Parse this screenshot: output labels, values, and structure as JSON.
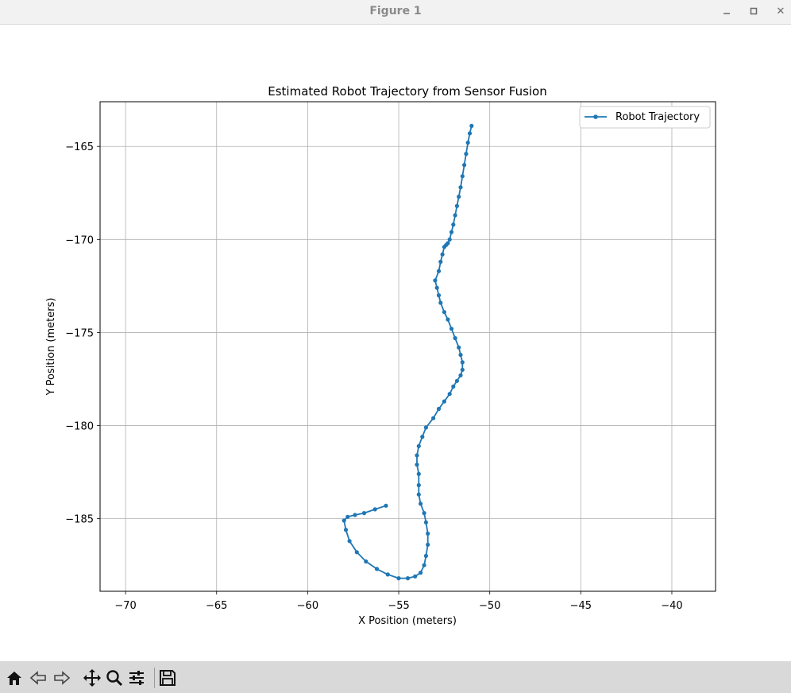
{
  "window": {
    "title": "Figure 1",
    "controls": [
      "minimize-icon",
      "maximize-icon",
      "close-icon"
    ],
    "close_glyph": "✕"
  },
  "toolbar": {
    "buttons": [
      {
        "name": "home-icon",
        "interactable": true
      },
      {
        "name": "back-arrow-icon",
        "interactable": true
      },
      {
        "name": "forward-arrow-icon",
        "interactable": true
      },
      {
        "name": "pan-icon",
        "interactable": true
      },
      {
        "name": "zoom-icon",
        "interactable": true
      },
      {
        "name": "configure-subplots-icon",
        "interactable": true
      },
      {
        "name": "save-icon",
        "interactable": true
      }
    ]
  },
  "chart_data": {
    "type": "line",
    "title": "Estimated Robot Trajectory from Sensor Fusion",
    "xlabel": "X Position (meters)",
    "ylabel": "Y Position (meters)",
    "xlim": [
      -71.4,
      -37.6
    ],
    "ylim": [
      -188.9,
      -162.6
    ],
    "xticks": [
      -70,
      -65,
      -60,
      -55,
      -50,
      -45,
      -40
    ],
    "yticks": [
      -165,
      -170,
      -175,
      -180,
      -185
    ],
    "xtick_labels": [
      "−70",
      "−65",
      "−60",
      "−55",
      "−50",
      "−45",
      "−40"
    ],
    "ytick_labels": [
      "−165",
      "−170",
      "−175",
      "−180",
      "−185"
    ],
    "grid": true,
    "legend_position": "upper-right",
    "series_color": "#1f77b4",
    "series": [
      {
        "name": "Robot Trajectory",
        "marker": "circle",
        "x": [
          -51.0,
          -51.1,
          -51.2,
          -51.3,
          -51.4,
          -51.5,
          -51.6,
          -51.7,
          -51.8,
          -51.9,
          -52.0,
          -52.1,
          -52.2,
          -52.3,
          -52.4,
          -52.5,
          -52.6,
          -52.7,
          -52.8,
          -53.0,
          -52.9,
          -52.8,
          -52.7,
          -52.5,
          -52.3,
          -52.1,
          -51.9,
          -51.7,
          -51.6,
          -51.5,
          -51.5,
          -51.6,
          -51.8,
          -52.0,
          -52.2,
          -52.5,
          -52.8,
          -53.1,
          -53.5,
          -53.7,
          -53.9,
          -54.0,
          -54.0,
          -53.9,
          -53.9,
          -53.9,
          -53.8,
          -53.6,
          -53.5,
          -53.4,
          -53.4,
          -53.5,
          -53.6,
          -53.8,
          -54.1,
          -54.5,
          -55.0,
          -55.6,
          -56.2,
          -56.8,
          -57.3,
          -57.7,
          -57.9,
          -58.0,
          -57.8,
          -57.4,
          -56.9,
          -56.3,
          -55.7
        ],
        "y": [
          -163.9,
          -164.3,
          -164.8,
          -165.4,
          -166.0,
          -166.6,
          -167.2,
          -167.7,
          -168.2,
          -168.7,
          -169.2,
          -169.6,
          -170.0,
          -170.2,
          -170.3,
          -170.4,
          -170.8,
          -171.2,
          -171.7,
          -172.2,
          -172.6,
          -173.0,
          -173.4,
          -173.9,
          -174.3,
          -174.8,
          -175.3,
          -175.8,
          -176.2,
          -176.6,
          -177.0,
          -177.3,
          -177.6,
          -177.9,
          -178.3,
          -178.7,
          -179.1,
          -179.6,
          -180.1,
          -180.6,
          -181.1,
          -181.6,
          -182.1,
          -182.6,
          -183.2,
          -183.7,
          -184.2,
          -184.7,
          -185.2,
          -185.8,
          -186.4,
          -187.0,
          -187.5,
          -187.9,
          -188.1,
          -188.2,
          -188.2,
          -188.0,
          -187.7,
          -187.3,
          -186.8,
          -186.2,
          -185.6,
          -185.1,
          -184.9,
          -184.8,
          -184.7,
          -184.5,
          -184.3
        ]
      }
    ]
  }
}
